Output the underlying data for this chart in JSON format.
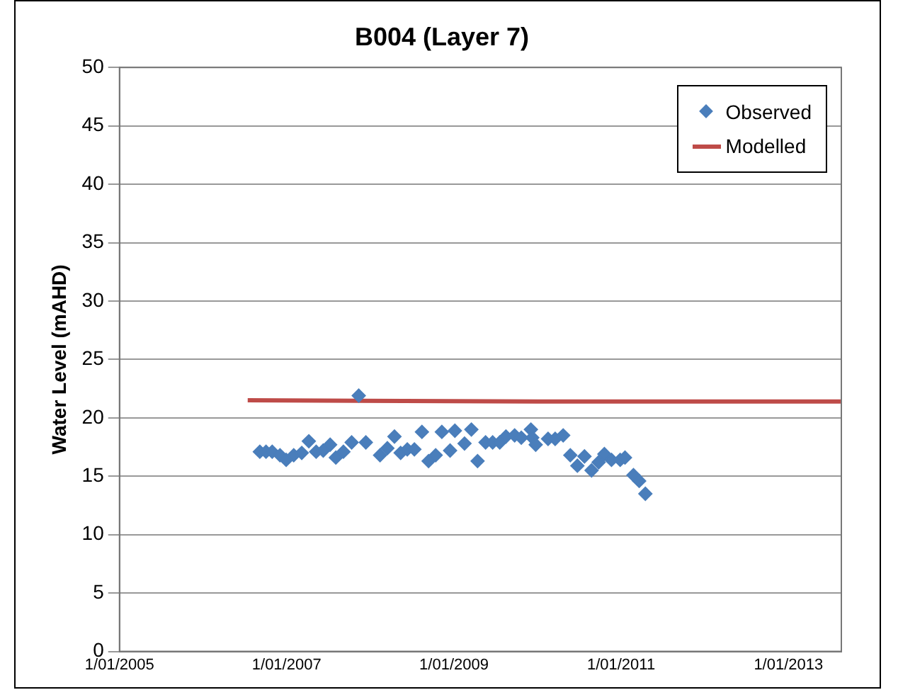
{
  "chart_data": {
    "type": "scatter",
    "title": "B004 (Layer 7)",
    "ylabel": "Water Level (mAHD)",
    "xlim": [
      "2005-01-01",
      "2013-08-20"
    ],
    "xticks": [
      {
        "value": "2005-01-01",
        "label": "1/01/2005"
      },
      {
        "value": "2007-01-01",
        "label": "1/01/2007"
      },
      {
        "value": "2009-01-01",
        "label": "1/01/2009"
      },
      {
        "value": "2011-01-01",
        "label": "1/01/2011"
      },
      {
        "value": "2013-01-01",
        "label": "1/01/2013"
      }
    ],
    "ylim": [
      0,
      50
    ],
    "yticks": [
      0,
      5,
      10,
      15,
      20,
      25,
      30,
      35,
      40,
      45,
      50
    ],
    "grid": "y",
    "legend": "top right",
    "series": [
      {
        "name": "Observed",
        "marker": "diamond",
        "color": "#4a7ebb",
        "x": [
          "2006-09-06",
          "2006-10-03",
          "2006-10-30",
          "2006-12-03",
          "2006-12-30",
          "2007-02-01",
          "2007-03-08",
          "2007-04-08",
          "2007-05-10",
          "2007-06-10",
          "2007-07-10",
          "2007-08-04",
          "2007-09-06",
          "2007-10-12",
          "2007-11-12",
          "2007-12-13",
          "2008-02-13",
          "2008-03-16",
          "2008-04-16",
          "2008-05-13",
          "2008-06-11",
          "2008-07-12",
          "2008-08-14",
          "2008-09-12",
          "2008-10-13",
          "2008-11-09",
          "2008-12-15",
          "2009-01-05",
          "2009-02-16",
          "2009-03-18",
          "2009-04-14",
          "2009-05-19",
          "2009-06-19",
          "2009-07-20",
          "2009-08-16",
          "2009-09-23",
          "2009-10-22",
          "2009-12-03",
          "2009-12-09",
          "2009-12-24",
          "2010-02-16",
          "2010-03-19",
          "2010-04-23",
          "2010-05-24",
          "2010-06-24",
          "2010-07-25",
          "2010-08-25",
          "2010-09-25",
          "2010-10-20",
          "2010-11-20",
          "2010-12-28",
          "2011-01-18",
          "2011-02-24",
          "2011-03-21",
          "2011-04-17"
        ],
        "values": [
          17.1,
          17.1,
          17.1,
          16.8,
          16.4,
          16.8,
          17.0,
          18.0,
          17.1,
          17.2,
          17.7,
          16.6,
          17.1,
          17.9,
          21.9,
          17.9,
          16.8,
          17.4,
          18.4,
          17.0,
          17.3,
          17.3,
          18.8,
          16.3,
          16.8,
          18.8,
          17.2,
          18.9,
          17.8,
          19.0,
          16.3,
          17.9,
          17.9,
          17.9,
          18.4,
          18.5,
          18.3,
          19.0,
          18.3,
          17.7,
          18.2,
          18.2,
          18.5,
          16.8,
          15.9,
          16.7,
          15.5,
          16.2,
          16.9,
          16.4,
          16.4,
          16.6,
          15.1,
          14.6,
          13.5
        ]
      },
      {
        "name": "Modelled",
        "type": "line",
        "marker": "none",
        "color": "#be4b48",
        "x": [
          "2006-07-15",
          "2009-12-31",
          "2013-08-20"
        ],
        "values": [
          21.5,
          21.4,
          21.4
        ]
      }
    ]
  }
}
